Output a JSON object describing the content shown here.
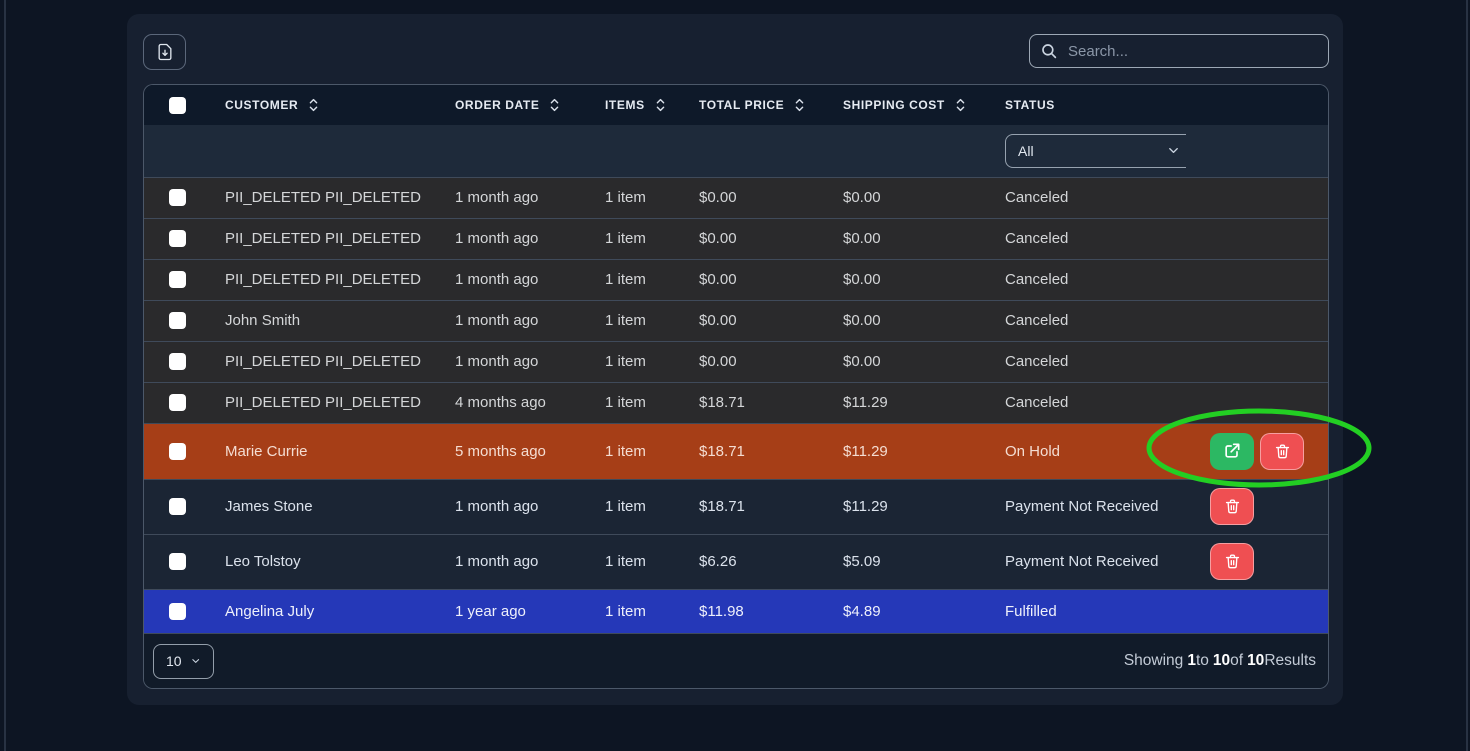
{
  "toolbar": {
    "export_icon": "file-download-icon",
    "search_placeholder": "Search..."
  },
  "table": {
    "columns": [
      {
        "label": "",
        "sortable": false
      },
      {
        "label": "CUSTOMER",
        "sortable": true
      },
      {
        "label": "ORDER DATE",
        "sortable": true
      },
      {
        "label": "ITEMS",
        "sortable": true
      },
      {
        "label": "TOTAL PRICE",
        "sortable": true
      },
      {
        "label": "SHIPPING COST",
        "sortable": true
      },
      {
        "label": "STATUS",
        "sortable": false
      },
      {
        "label": "",
        "sortable": false
      }
    ],
    "status_filter_value": "All",
    "rows": [
      {
        "customer": "PII_DELETED PII_DELETED",
        "order_date": "1 month ago",
        "items": "1 item",
        "total_price": "$0.00",
        "shipping_cost": "$0.00",
        "status": "Canceled",
        "color": "charcoal",
        "actions": []
      },
      {
        "customer": "PII_DELETED PII_DELETED",
        "order_date": "1 month ago",
        "items": "1 item",
        "total_price": "$0.00",
        "shipping_cost": "$0.00",
        "status": "Canceled",
        "color": "charcoal",
        "actions": []
      },
      {
        "customer": "PII_DELETED PII_DELETED",
        "order_date": "1 month ago",
        "items": "1 item",
        "total_price": "$0.00",
        "shipping_cost": "$0.00",
        "status": "Canceled",
        "color": "charcoal",
        "actions": []
      },
      {
        "customer": "John Smith",
        "order_date": "1 month ago",
        "items": "1 item",
        "total_price": "$0.00",
        "shipping_cost": "$0.00",
        "status": "Canceled",
        "color": "charcoal",
        "actions": []
      },
      {
        "customer": "PII_DELETED PII_DELETED",
        "order_date": "1 month ago",
        "items": "1 item",
        "total_price": "$0.00",
        "shipping_cost": "$0.00",
        "status": "Canceled",
        "color": "charcoal",
        "actions": []
      },
      {
        "customer": "PII_DELETED PII_DELETED",
        "order_date": "4 months ago",
        "items": "1 item",
        "total_price": "$18.71",
        "shipping_cost": "$11.29",
        "status": "Canceled",
        "color": "charcoal",
        "actions": []
      },
      {
        "customer": "Marie Currie",
        "order_date": "5 months ago",
        "items": "1 item",
        "total_price": "$18.71",
        "shipping_cost": "$11.29",
        "status": "On Hold",
        "color": "orange",
        "actions": [
          "edit",
          "delete"
        ]
      },
      {
        "customer": "James Stone",
        "order_date": "1 month ago",
        "items": "1 item",
        "total_price": "$18.71",
        "shipping_cost": "$11.29",
        "status": "Payment Not Received",
        "color": "navy",
        "actions": [
          "delete"
        ]
      },
      {
        "customer": "Leo Tolstoy",
        "order_date": "1 month ago",
        "items": "1 item",
        "total_price": "$6.26",
        "shipping_cost": "$5.09",
        "status": "Payment Not Received",
        "color": "navy",
        "actions": [
          "delete"
        ]
      },
      {
        "customer": "Angelina July",
        "order_date": "1 year ago",
        "items": "1 item",
        "total_price": "$11.98",
        "shipping_cost": "$4.89",
        "status": "Fulfilled",
        "color": "blue",
        "actions": []
      }
    ]
  },
  "footer": {
    "page_size": "10",
    "showing": {
      "prefix": "Showing",
      "from": "1",
      "to_word": "to",
      "to": "10",
      "of_word": "of",
      "total": "10",
      "suffix": "Results"
    }
  },
  "annotation": {
    "shape": "ellipse",
    "stroke_color": "#23cf23",
    "highlights": "row-action-buttons"
  },
  "colors": {
    "page_bg": "#0d1523",
    "card_bg": "#172030",
    "header_bg": "#0e1929",
    "row_canceled": "#2a2a2c",
    "row_on_hold": "#a63e17",
    "row_payment_not_received": "#1b2534",
    "row_fulfilled": "#2538b8",
    "edit_button": "#2cb863",
    "delete_button": "#ef4f52"
  }
}
